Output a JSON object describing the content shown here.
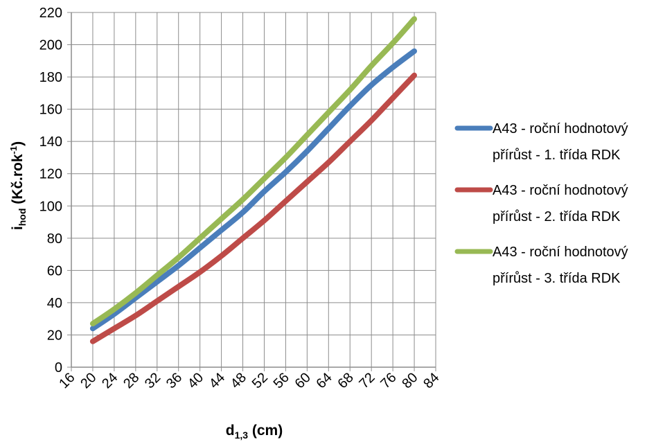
{
  "chart_data": {
    "type": "line",
    "xlabel": {
      "main": "d",
      "sub": "1,3",
      "rest": " (cm)"
    },
    "ylabel": {
      "main": "i",
      "sub": "hod",
      "rest": " (Kč.rok",
      "sup": "-1",
      "end": ")"
    },
    "xlim": [
      16,
      84
    ],
    "ylim": [
      0,
      220
    ],
    "xticks": [
      16,
      20,
      24,
      28,
      32,
      36,
      40,
      44,
      48,
      52,
      56,
      60,
      64,
      68,
      72,
      76,
      80,
      84
    ],
    "yticks": [
      0,
      20,
      40,
      60,
      80,
      100,
      120,
      140,
      160,
      180,
      200,
      220
    ],
    "grid": true,
    "legend_position": "right",
    "x": [
      20,
      24,
      28,
      32,
      36,
      40,
      44,
      48,
      52,
      56,
      60,
      64,
      68,
      72,
      76,
      80
    ],
    "series": [
      {
        "name_lines": [
          "A43 - roční hodnotový",
          "přírůst - 1. třída RDK"
        ],
        "color": "#4a7ebb",
        "values": [
          24,
          33,
          43,
          53,
          63,
          74,
          85,
          96,
          109,
          121,
          134,
          148,
          162,
          175,
          186,
          196
        ]
      },
      {
        "name_lines": [
          "A43 - roční hodnotový",
          "přírůst - 2. třída RDK"
        ],
        "color": "#be4b48",
        "values": [
          16,
          24,
          32,
          41,
          50,
          59,
          69,
          80,
          91,
          103,
          115,
          127,
          140,
          153,
          167,
          181
        ]
      },
      {
        "name_lines": [
          "A43 - roční hodnotový",
          "přírůst - 3. třída RDK"
        ],
        "color": "#98b954",
        "values": [
          27,
          36,
          46,
          57,
          68,
          80,
          92,
          104,
          117,
          130,
          144,
          158,
          172,
          187,
          201,
          216
        ]
      }
    ]
  }
}
